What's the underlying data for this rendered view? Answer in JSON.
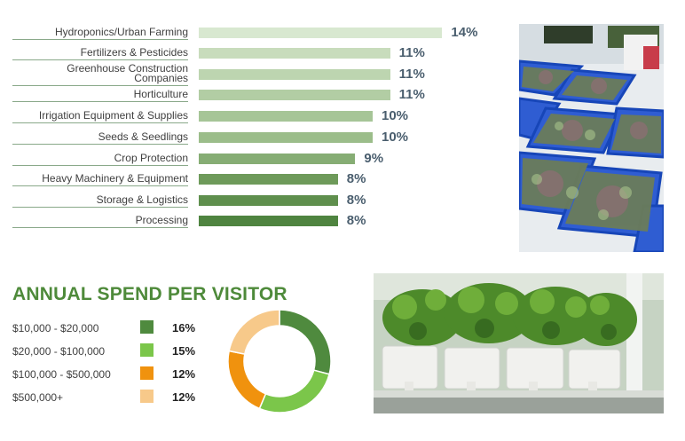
{
  "chart_data": [
    {
      "type": "bar",
      "orientation": "horizontal",
      "categories": [
        "Hydroponics/Urban Farming",
        "Fertilizers & Pesticides",
        "Greenhouse Construction Companies",
        "Horticulture",
        "Irrigation Equipment & Supplies",
        "Seeds & Seedlings",
        "Crop Protection",
        "Heavy Machinery & Equipment",
        "Storage & Logistics",
        "Processing"
      ],
      "values": [
        14,
        11,
        11,
        11,
        10,
        10,
        9,
        8,
        8,
        8
      ],
      "value_labels": [
        "14%",
        "11%",
        "11%",
        "11%",
        "10%",
        "10%",
        "9%",
        "8%",
        "8%",
        "8%"
      ],
      "bar_colors": [
        "#d8e8d0",
        "#c8dcbc",
        "#bdd5b0",
        "#b2cda4",
        "#a6c597",
        "#9bbd8a",
        "#86ad74",
        "#6e9a5a",
        "#5f8f4d",
        "#4f8440"
      ],
      "label_lines": [
        [
          "Hydroponics/Urban Farming"
        ],
        [
          "Fertilizers & Pesticides"
        ],
        [
          "Greenhouse Construction",
          "Companies"
        ],
        [
          "Horticulture"
        ],
        [
          "Irrigation Equipment & Supplies"
        ],
        [
          "Seeds & Seedlings"
        ],
        [
          "Crop Protection"
        ],
        [
          "Heavy Machinery & Equipment"
        ],
        [
          "Storage & Logistics"
        ],
        [
          "Processing"
        ]
      ]
    },
    {
      "type": "pie",
      "variant": "donut",
      "title": "ANNUAL SPEND PER VISITOR",
      "categories": [
        "$10,000 - $20,000",
        "$20,000 - $100,000",
        "$100,000 - $500,000",
        "$500,000+"
      ],
      "values": [
        16,
        15,
        12,
        12
      ],
      "value_labels": [
        "16%",
        "15%",
        "12%",
        "12%"
      ],
      "colors": [
        "#4f8a3e",
        "#7bc64a",
        "#f0920e",
        "#f7c98a"
      ]
    }
  ],
  "photos": [
    {
      "subject": "microgreens-in-blue-trays"
    },
    {
      "subject": "hydroponic-kale-pots"
    }
  ]
}
